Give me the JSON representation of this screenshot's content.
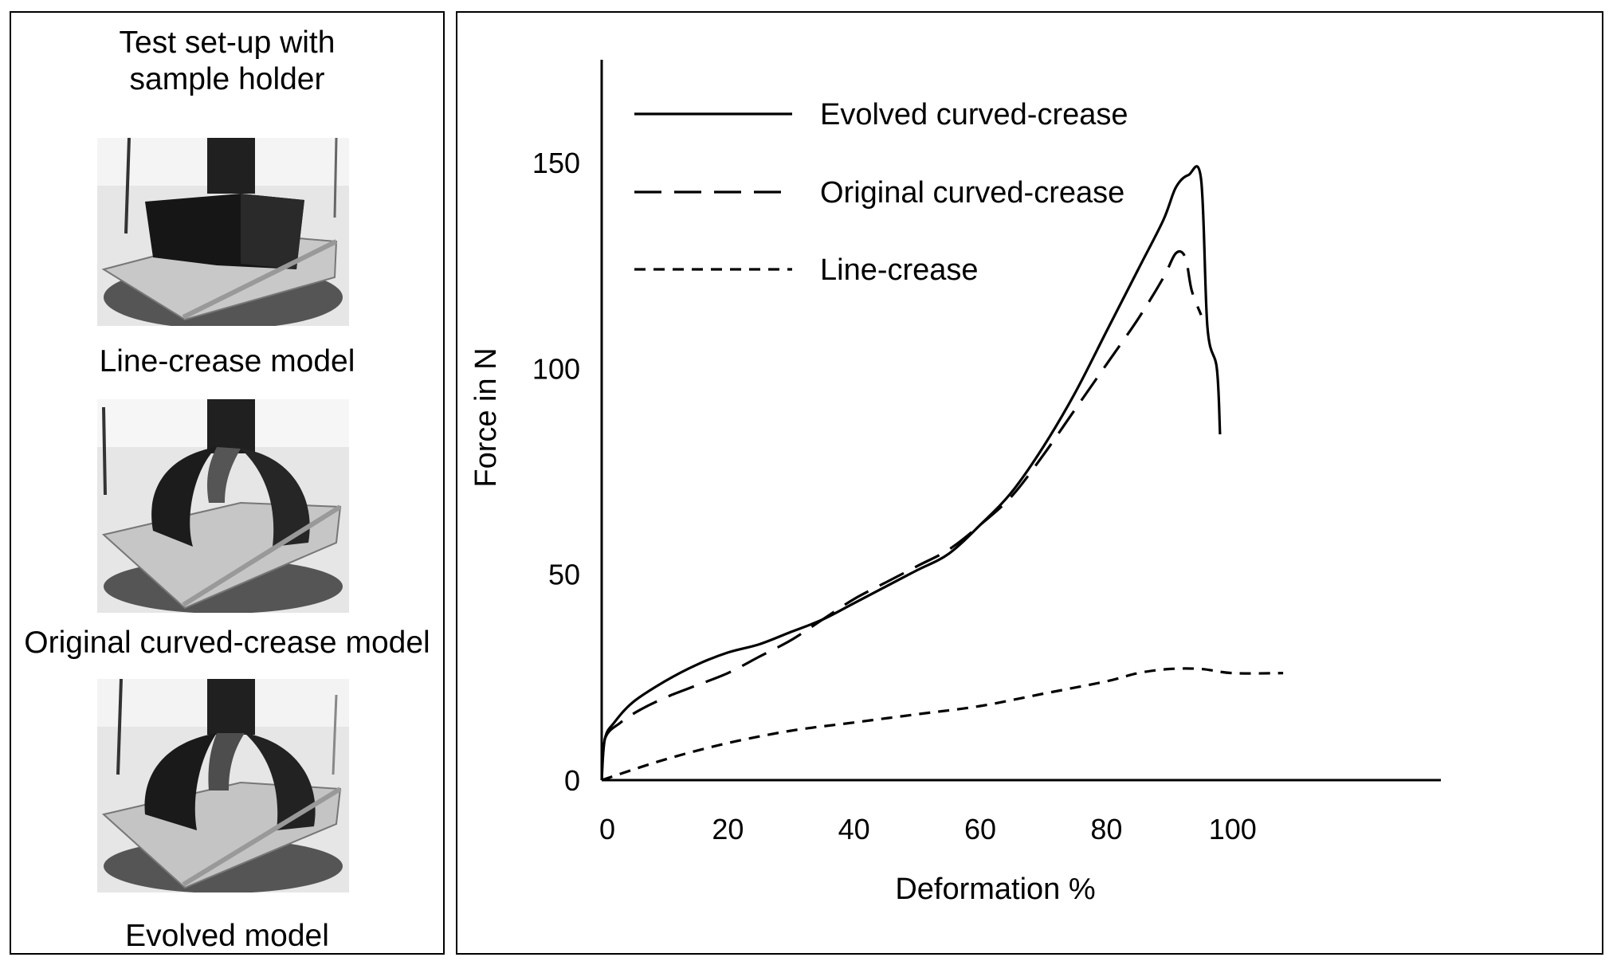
{
  "left_panel": {
    "heading_line1": "Test set-up with",
    "heading_line2": "sample holder",
    "models": [
      {
        "caption": "Line-crease model"
      },
      {
        "caption": "Original curved-crease model"
      },
      {
        "caption": "Evolved model"
      }
    ]
  },
  "chart_data": {
    "type": "line",
    "title": "",
    "xlabel": "Deformation %",
    "ylabel": "Force in N",
    "xlim": [
      0,
      133
    ],
    "ylim": [
      0,
      175
    ],
    "x_ticks": [
      0,
      20,
      40,
      60,
      80,
      100
    ],
    "y_ticks": [
      0,
      50,
      100,
      150
    ],
    "grid": false,
    "legend_position": "top-left",
    "series": [
      {
        "name": "Evolved curved-crease",
        "style": "solid",
        "points": [
          [
            0,
            0
          ],
          [
            0.5,
            10
          ],
          [
            2,
            14
          ],
          [
            5,
            19
          ],
          [
            10,
            24
          ],
          [
            15,
            28
          ],
          [
            20,
            31
          ],
          [
            25,
            33
          ],
          [
            30,
            36
          ],
          [
            35,
            39
          ],
          [
            40,
            43
          ],
          [
            45,
            47
          ],
          [
            50,
            51
          ],
          [
            55,
            55
          ],
          [
            60,
            62
          ],
          [
            65,
            70
          ],
          [
            70,
            81
          ],
          [
            75,
            94
          ],
          [
            80,
            109
          ],
          [
            85,
            124
          ],
          [
            89,
            136
          ],
          [
            91,
            144
          ],
          [
            93,
            147
          ],
          [
            95,
            146
          ],
          [
            96,
            110
          ],
          [
            97.5,
            100
          ],
          [
            98,
            84
          ]
        ]
      },
      {
        "name": "Original curved-crease",
        "style": "dashed",
        "points": [
          [
            0,
            0
          ],
          [
            0.5,
            10
          ],
          [
            3,
            14
          ],
          [
            6,
            17
          ],
          [
            10,
            20
          ],
          [
            15,
            23
          ],
          [
            20,
            26
          ],
          [
            25,
            30
          ],
          [
            30,
            34
          ],
          [
            35,
            39
          ],
          [
            40,
            44
          ],
          [
            45,
            48
          ],
          [
            50,
            52
          ],
          [
            55,
            56
          ],
          [
            60,
            62
          ],
          [
            65,
            69
          ],
          [
            70,
            79
          ],
          [
            75,
            90
          ],
          [
            80,
            101
          ],
          [
            85,
            112
          ],
          [
            89,
            122
          ],
          [
            91,
            128
          ],
          [
            92.5,
            127
          ],
          [
            93.5,
            119
          ],
          [
            95,
            113
          ]
        ]
      },
      {
        "name": "Line-crease",
        "style": "dotted-dashed-short",
        "points": [
          [
            0,
            0
          ],
          [
            10,
            5
          ],
          [
            20,
            9
          ],
          [
            30,
            12
          ],
          [
            40,
            14
          ],
          [
            50,
            16
          ],
          [
            60,
            18
          ],
          [
            70,
            21
          ],
          [
            80,
            24
          ],
          [
            85,
            26
          ],
          [
            90,
            27
          ],
          [
            95,
            27
          ],
          [
            100,
            26
          ],
          [
            108,
            26
          ]
        ]
      }
    ]
  }
}
